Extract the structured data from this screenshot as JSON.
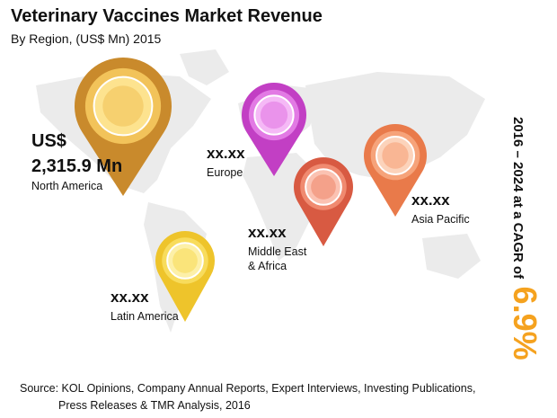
{
  "header": {
    "title": "Veterinary Vaccines Market Revenue",
    "subtitle": "By Region, (US$ Mn) 2015"
  },
  "regions": [
    {
      "label": "North America",
      "currency": "US$",
      "value": "2,315.9 Mn"
    },
    {
      "label": "Europe",
      "value": "xx.xx"
    },
    {
      "label": "Middle East",
      "label_line2": "& Africa",
      "value": "xx.xx"
    },
    {
      "label": "Asia Pacific",
      "value": "xx.xx"
    },
    {
      "label": "Latin America",
      "value": "xx.xx"
    }
  ],
  "cagr": {
    "text": "2016 – 2024 at a CAGR of",
    "value": "6.9%"
  },
  "source": {
    "line1": "Source: KOL Opinions, Company Annual Reports, Expert Interviews, Investing Publications,",
    "line2": "Press Releases & TMR Analysis, 2016"
  }
}
